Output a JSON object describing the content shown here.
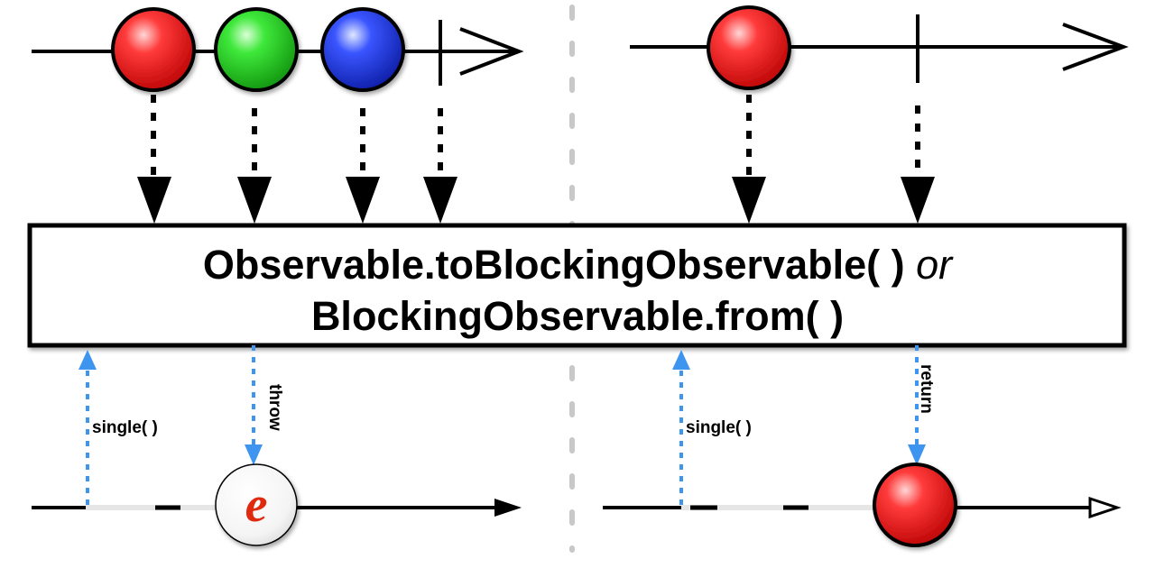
{
  "operator": {
    "line1": "Observable.toBlockingObservable( )",
    "connector": "or",
    "line2": "BlockingObservable.from( )"
  },
  "left_panel": {
    "source_items": [
      {
        "name": "red",
        "color": "#e8141c"
      },
      {
        "name": "green",
        "color": "#22c41e"
      },
      {
        "name": "blue",
        "color": "#1a2fd6"
      }
    ],
    "call_label": "single( )",
    "result_label": "throw",
    "error_symbol": "e"
  },
  "right_panel": {
    "source_items": [
      {
        "name": "red",
        "color": "#e8141c"
      }
    ],
    "call_label": "single( )",
    "result_label": "return",
    "result_item": {
      "name": "red",
      "color": "#e8141c"
    }
  },
  "colors": {
    "line": "#000000",
    "call_arrow": "#3d95f0",
    "divider": "#c8c8c8",
    "error": "#e02a10"
  }
}
